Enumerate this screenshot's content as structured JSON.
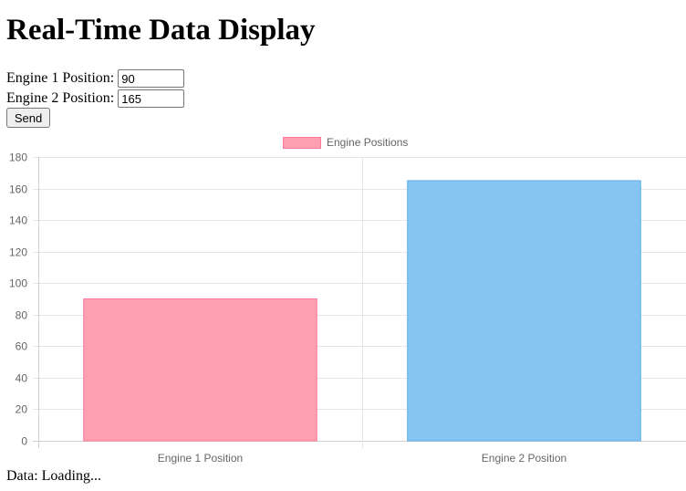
{
  "page": {
    "title": "Real-Time Data Display",
    "engine1_label": "Engine 1 Position:",
    "engine1_value": "90",
    "engine2_label": "Engine 2 Position:",
    "engine2_value": "165",
    "send_label": "Send",
    "status_label": "Data:",
    "status_value": "Loading..."
  },
  "chart_data": {
    "type": "bar",
    "categories": [
      "Engine 1 Position",
      "Engine 2 Position"
    ],
    "series": [
      {
        "name": "Engine Positions",
        "values": [
          90,
          165
        ]
      }
    ],
    "bar_fill_colors": [
      "#ff9fb2",
      "#86c5f2"
    ],
    "bar_border_colors": [
      "#ff7a9a",
      "#5ab0ea"
    ],
    "ylim": [
      0,
      180
    ],
    "yticks": [
      0,
      20,
      40,
      60,
      80,
      100,
      120,
      140,
      160,
      180
    ],
    "grid": true,
    "legend": "top-center"
  }
}
